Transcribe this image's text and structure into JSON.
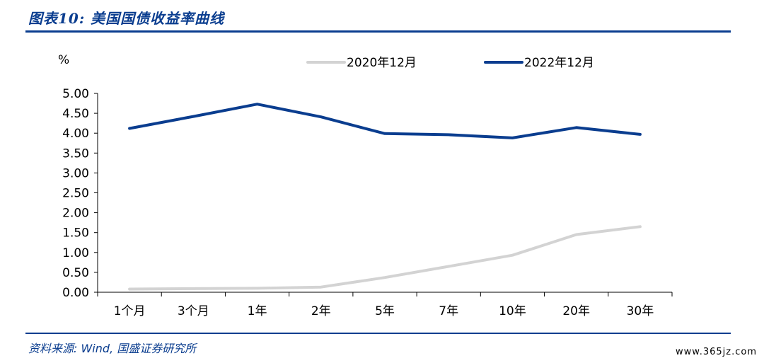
{
  "header": {
    "title": "图表10: 美国国债收益率曲线"
  },
  "footer": {
    "source": "资料来源: Wind, 国盛证券研究所",
    "watermark": "www.365jz.com"
  },
  "chart_data": {
    "type": "line",
    "title": "",
    "ylabel": "%",
    "xlabel": "",
    "categories": [
      "1个月",
      "3个月",
      "1年",
      "2年",
      "5年",
      "7年",
      "10年",
      "20年",
      "30年"
    ],
    "ylim": [
      0,
      5
    ],
    "yticks": [
      "0.00",
      "0.50",
      "1.00",
      "1.50",
      "2.00",
      "2.50",
      "3.00",
      "3.50",
      "4.00",
      "4.50",
      "5.00"
    ],
    "legend_position": "top",
    "grid": false,
    "series": [
      {
        "name": "2020年12月",
        "color": "#d3d3d3",
        "values": [
          0.08,
          0.09,
          0.1,
          0.13,
          0.37,
          0.65,
          0.93,
          1.45,
          1.65
        ]
      },
      {
        "name": "2022年12月",
        "color": "#0a3d8f",
        "values": [
          4.12,
          4.42,
          4.73,
          4.41,
          3.99,
          3.96,
          3.88,
          4.14,
          3.97
        ]
      }
    ]
  }
}
